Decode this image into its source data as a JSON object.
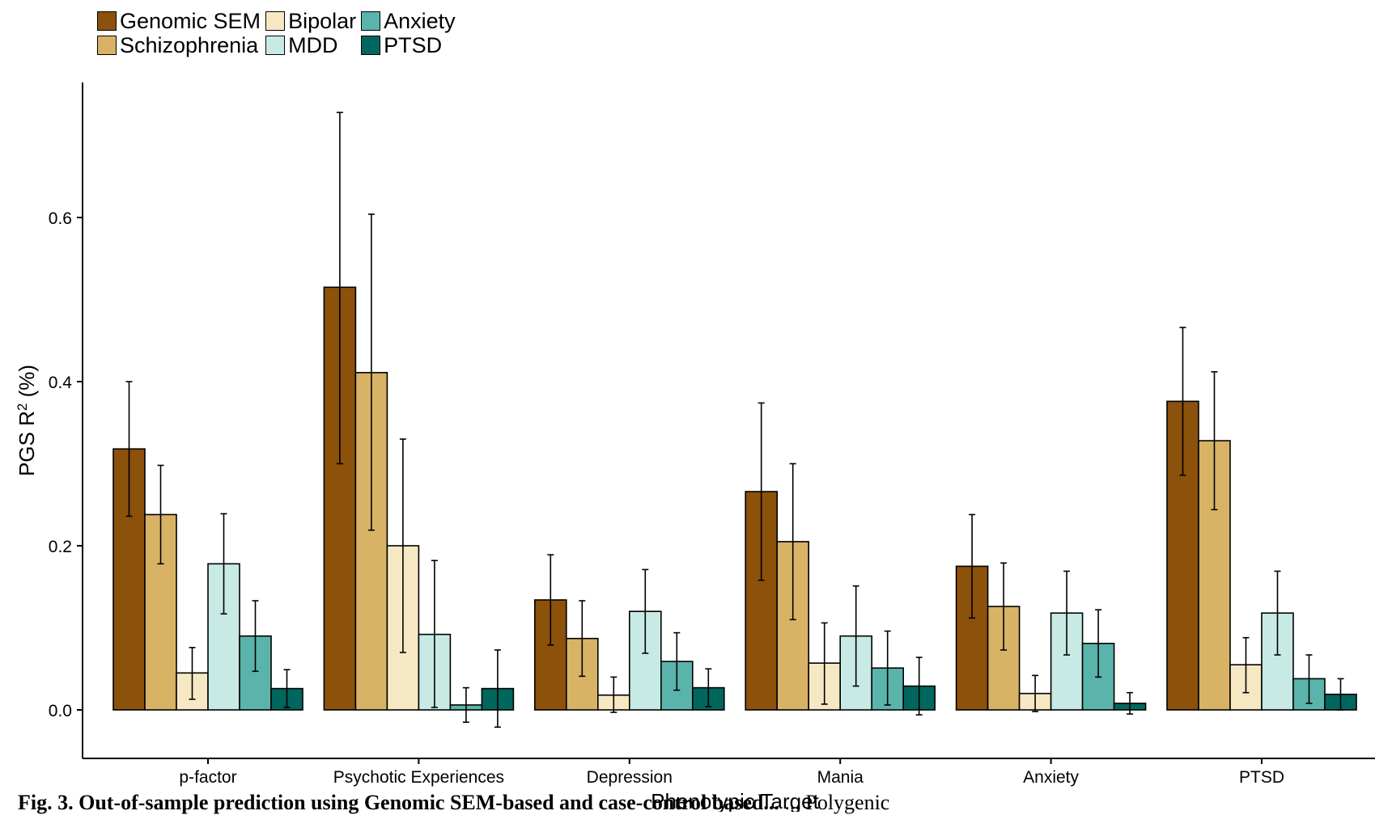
{
  "chart_data": {
    "type": "bar",
    "xlabel": "Phenotypic Target",
    "ylabel": "PGS R² (%)",
    "ylabel_main": "PGS R",
    "ylabel_sup": "2",
    "ylabel_unit": " (%)",
    "ylim": [
      -0.058,
      0.765
    ],
    "yticks": [
      "0.0",
      "0.2",
      "0.4",
      "0.6"
    ],
    "grid": false,
    "legend_position": "top-left",
    "categories": [
      "p-factor",
      "Psychotic Experiences",
      "Depression",
      "Mania",
      "Anxiety",
      "PTSD"
    ],
    "series": [
      {
        "name": "Genomic SEM",
        "color": "#8C510A",
        "values": [
          0.318,
          0.515,
          0.134,
          0.266,
          0.175,
          0.376
        ],
        "err_low": [
          0.236,
          0.3,
          0.079,
          0.158,
          0.112,
          0.286
        ],
        "err_high": [
          0.4,
          0.728,
          0.189,
          0.374,
          0.238,
          0.466
        ]
      },
      {
        "name": "Schizophrenia",
        "color": "#D8B365",
        "values": [
          0.238,
          0.411,
          0.087,
          0.205,
          0.126,
          0.328
        ],
        "err_low": [
          0.178,
          0.219,
          0.041,
          0.11,
          0.073,
          0.244
        ],
        "err_high": [
          0.298,
          0.604,
          0.133,
          0.3,
          0.179,
          0.412
        ]
      },
      {
        "name": "Bipolar",
        "color": "#F6E8C3",
        "values": [
          0.045,
          0.2,
          0.018,
          0.057,
          0.02,
          0.055
        ],
        "err_low": [
          0.013,
          0.07,
          -0.003,
          0.007,
          -0.002,
          0.021
        ],
        "err_high": [
          0.076,
          0.33,
          0.04,
          0.106,
          0.042,
          0.088
        ]
      },
      {
        "name": "MDD",
        "color": "#C7EAE5",
        "values": [
          0.178,
          0.092,
          0.12,
          0.09,
          0.118,
          0.118
        ],
        "err_low": [
          0.117,
          0.003,
          0.069,
          0.029,
          0.067,
          0.067
        ],
        "err_high": [
          0.239,
          0.182,
          0.171,
          0.151,
          0.169,
          0.169
        ]
      },
      {
        "name": "Anxiety",
        "color": "#5AB4AC",
        "values": [
          0.09,
          0.006,
          0.059,
          0.051,
          0.081,
          0.038
        ],
        "err_low": [
          0.047,
          -0.015,
          0.024,
          0.006,
          0.04,
          0.008
        ],
        "err_high": [
          0.133,
          0.027,
          0.094,
          0.096,
          0.122,
          0.067
        ]
      },
      {
        "name": "PTSD",
        "color": "#01665E",
        "values": [
          0.026,
          0.026,
          0.027,
          0.029,
          0.008,
          0.019
        ],
        "err_low": [
          0.003,
          -0.021,
          0.004,
          -0.006,
          -0.005,
          0.0
        ],
        "err_high": [
          0.049,
          0.073,
          0.05,
          0.064,
          0.021,
          0.038
        ]
      }
    ]
  },
  "caption": {
    "bold_text": "Fig. 3. Out-of-sample prediction using Genomic SEM-based and case-control based...",
    "rest_text": "... Polygenic"
  }
}
